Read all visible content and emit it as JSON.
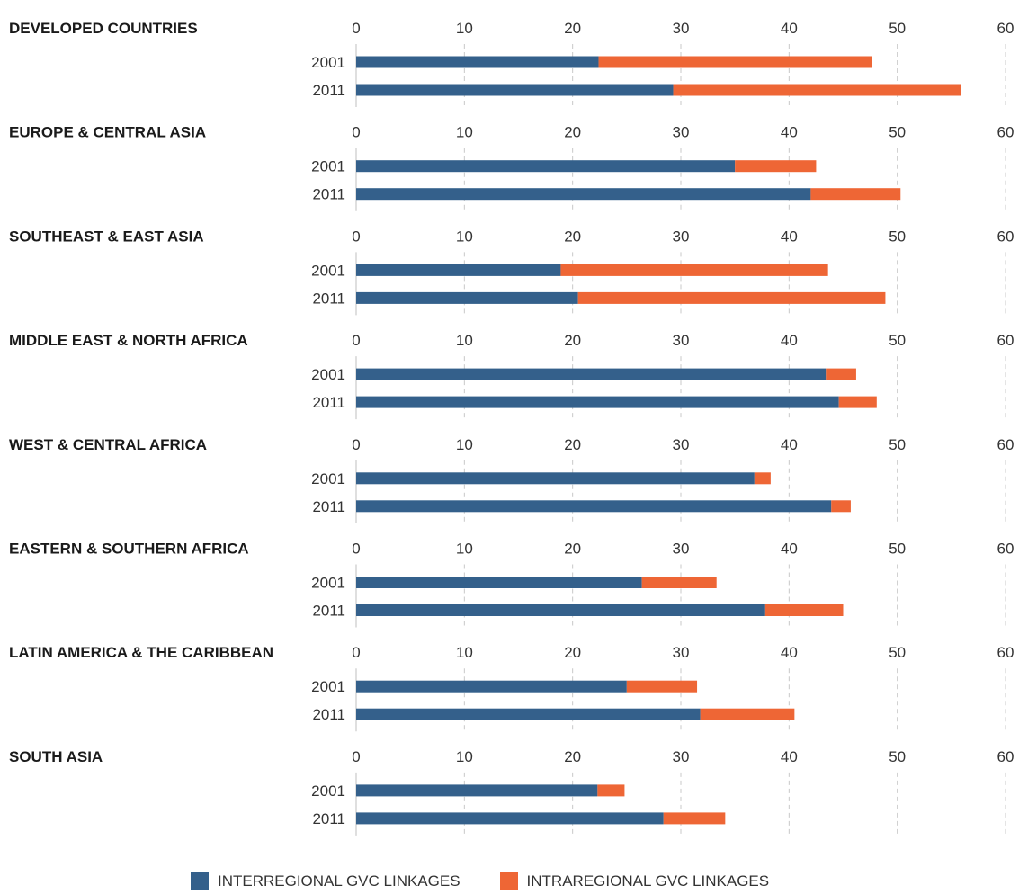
{
  "chart_data": {
    "type": "bar",
    "orientation": "horizontal",
    "stacked": true,
    "xlim": [
      0,
      60
    ],
    "x_ticks": [
      "0",
      "10",
      "20",
      "30",
      "40",
      "50",
      "60"
    ],
    "grid": "vertical dashed",
    "legend_position": "bottom",
    "series": [
      {
        "name": "INTERREGIONAL GVC LINKAGES",
        "color": "#34608b"
      },
      {
        "name": "INTRAREGIONAL GVC LINKAGES",
        "color": "#ee6635"
      }
    ],
    "groups": [
      {
        "region": "DEVELOPED COUNTRIES",
        "bars": [
          {
            "year": "2001",
            "interregional": 22.4,
            "intraregional": 25.3
          },
          {
            "year": "2011",
            "interregional": 29.3,
            "intraregional": 26.6
          }
        ]
      },
      {
        "region": "EUROPE & CENTRAL ASIA",
        "bars": [
          {
            "year": "2001",
            "interregional": 35.0,
            "intraregional": 7.5
          },
          {
            "year": "2011",
            "interregional": 42.0,
            "intraregional": 8.3
          }
        ]
      },
      {
        "region": "SOUTHEAST & EAST ASIA",
        "bars": [
          {
            "year": "2001",
            "interregional": 18.9,
            "intraregional": 24.7
          },
          {
            "year": "2011",
            "interregional": 20.5,
            "intraregional": 28.4
          }
        ]
      },
      {
        "region": "MIDDLE EAST & NORTH AFRICA",
        "bars": [
          {
            "year": "2001",
            "interregional": 43.4,
            "intraregional": 2.8
          },
          {
            "year": "2011",
            "interregional": 44.6,
            "intraregional": 3.5
          }
        ]
      },
      {
        "region": "WEST & CENTRAL AFRICA",
        "bars": [
          {
            "year": "2001",
            "interregional": 36.8,
            "intraregional": 1.5
          },
          {
            "year": "2011",
            "interregional": 43.9,
            "intraregional": 1.8
          }
        ]
      },
      {
        "region": "EASTERN & SOUTHERN AFRICA",
        "bars": [
          {
            "year": "2001",
            "interregional": 26.4,
            "intraregional": 6.9
          },
          {
            "year": "2011",
            "interregional": 37.8,
            "intraregional": 7.2
          }
        ]
      },
      {
        "region": "LATIN AMERICA & THE CARIBBEAN",
        "bars": [
          {
            "year": "2001",
            "interregional": 25.0,
            "intraregional": 6.5
          },
          {
            "year": "2011",
            "interregional": 31.8,
            "intraregional": 8.7
          }
        ]
      },
      {
        "region": "SOUTH ASIA",
        "bars": [
          {
            "year": "2001",
            "interregional": 22.3,
            "intraregional": 2.5
          },
          {
            "year": "2011",
            "interregional": 28.4,
            "intraregional": 5.7
          }
        ]
      }
    ]
  }
}
